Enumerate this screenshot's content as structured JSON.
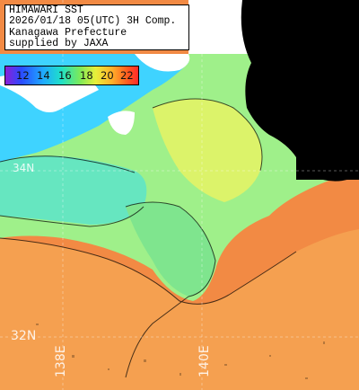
{
  "map": {
    "title_lines": [
      "HIMAWARI SST",
      "2026/01/18 05(UTC) 3H Comp.",
      "Kanagawa Prefecture",
      "supplied by JAXA"
    ],
    "legend": {
      "ticks": [
        "12",
        "14",
        "16",
        "18",
        "20",
        "22"
      ],
      "colors": {
        "12": "#5a28e0",
        "14": "#1f7bff",
        "16": "#1fe0c8",
        "18": "#7bea5a",
        "20": "#ffb22a",
        "22": "#ff2a2a"
      }
    },
    "grid_labels": {
      "lat_32": "32N",
      "lon_138": "138E",
      "lon_140": "140E",
      "lat_34": "34N"
    },
    "colors": {
      "land": "#ffffff",
      "cloud": "#000000",
      "cold_water": "#3bd7ff",
      "cool_water": "#71ecb0",
      "mid_water": "#b8f07a",
      "warm_water": "#f6a24d",
      "hot_water": "#f58a3e"
    }
  }
}
